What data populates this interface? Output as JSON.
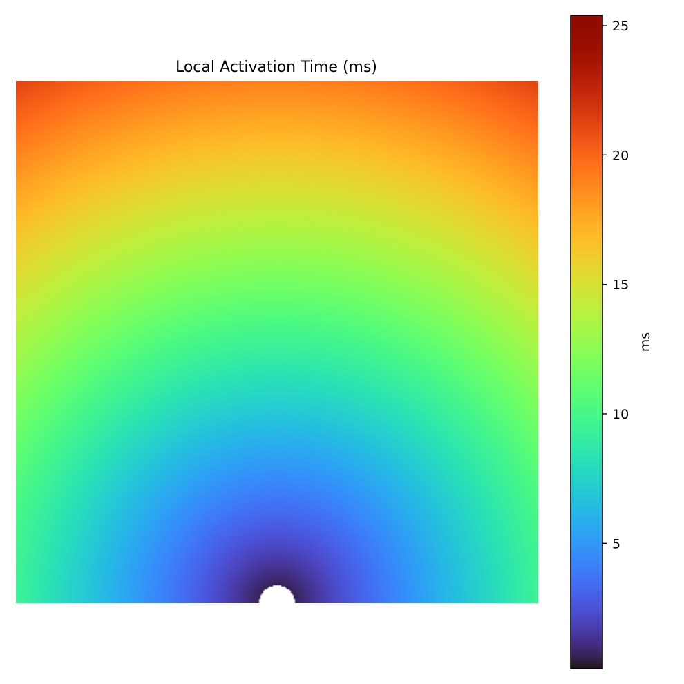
{
  "chart_data": {
    "type": "heatmap",
    "title": "Local Activation Time (ms)",
    "xlabel": "",
    "ylabel": "",
    "axes_visible": false,
    "grid": false,
    "colormap": "turbo",
    "value_range": [
      0,
      25.4
    ],
    "field": {
      "description_free": true,
      "source_position": "bottom-center",
      "grid_columns": 100,
      "grid_rows": 100,
      "source_column": 50,
      "source_row": 100,
      "ms_per_cell_distance": 0.1905,
      "excluded_radius_cells": 3.4,
      "corner_values": {
        "top_left": 25.4,
        "top_right": 25.4,
        "bottom_left": 12.7,
        "bottom_right": 12.7,
        "top_center": 19.0
      }
    },
    "colorbar": {
      "label": "ms",
      "placement": "right",
      "min": 0.15,
      "max": 25.4,
      "ticks": [
        {
          "value": 5,
          "label": "5"
        },
        {
          "value": 10,
          "label": "10"
        },
        {
          "value": 15,
          "label": "15"
        },
        {
          "value": 20,
          "label": "20"
        },
        {
          "value": 25,
          "label": "25"
        }
      ]
    }
  }
}
